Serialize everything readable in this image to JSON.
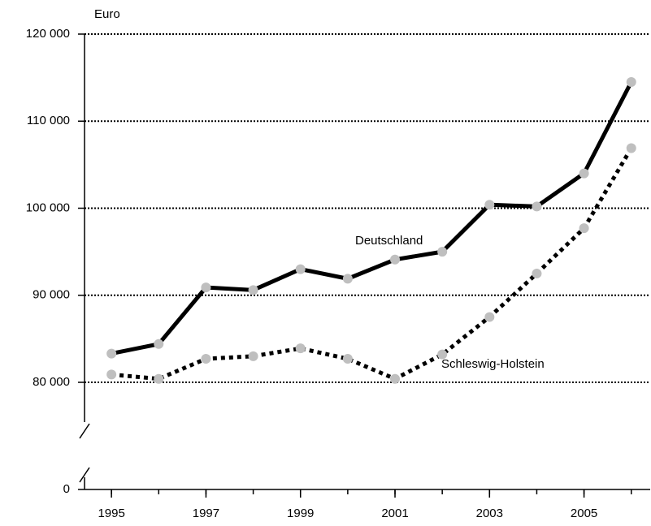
{
  "chart_data": {
    "type": "line",
    "y_label": "Euro",
    "x": [
      1995,
      1996,
      1997,
      1998,
      1999,
      2000,
      2001,
      2002,
      2003,
      2004,
      2005,
      2006
    ],
    "series": [
      {
        "name": "Deutschland",
        "color": "#000000",
        "line_style": "solid",
        "marker_color": "#bfbfbf",
        "values": [
          83300,
          84400,
          90900,
          90600,
          93000,
          91900,
          94100,
          95000,
          100400,
          100200,
          104000,
          114500
        ]
      },
      {
        "name": "Schleswig-Holstein",
        "color": "#000000",
        "line_style": "dotted",
        "marker_color": "#bfbfbf",
        "values": [
          80900,
          80400,
          82700,
          83000,
          83900,
          82700,
          80400,
          83200,
          87500,
          92500,
          97700,
          106900
        ]
      }
    ],
    "xlim": [
      1994.43,
      2006.4
    ],
    "xticks": [
      1995,
      1997,
      1999,
      2001,
      2003,
      2005
    ],
    "ylim": [
      0,
      120000
    ],
    "yticks": [
      0,
      {
        "value": 80000,
        "label": "80 000"
      },
      {
        "value": 90000,
        "label": "90 000"
      },
      {
        "value": 100000,
        "label": "100 000"
      },
      {
        "value": 110000,
        "label": "110 000"
      },
      {
        "value": 120000,
        "label": "120 000"
      }
    ],
    "axis_break": true,
    "grid": true
  }
}
